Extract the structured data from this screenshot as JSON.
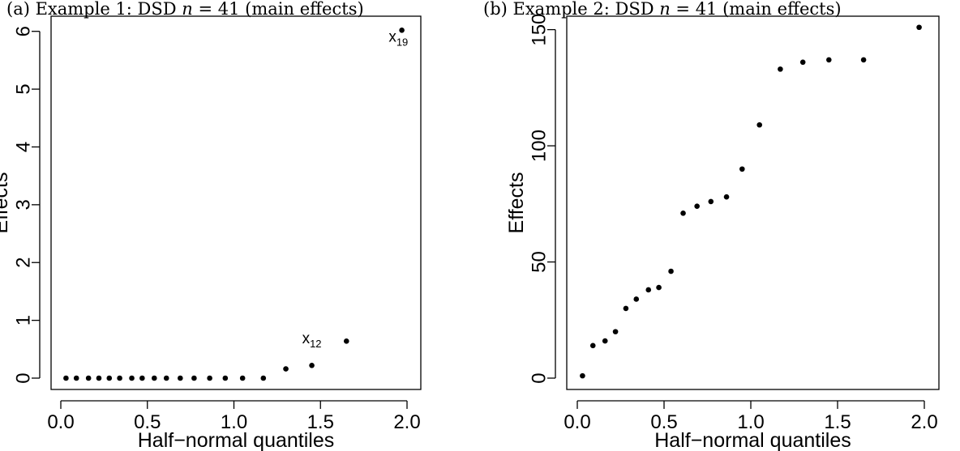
{
  "chart_data": [
    {
      "type": "scatter",
      "title": "(a) Example 1: DSD n = 41 (main effects)",
      "title_parts": {
        "prefix": "(a) Example 1: DSD ",
        "var": "n",
        "mid": " = 41 (main effects)"
      },
      "xlabel": "Half−normal quantiles",
      "ylabel": "Effects",
      "xlim": [
        0,
        2.0
      ],
      "ylim": [
        0,
        6.15
      ],
      "xticks": [
        0.0,
        0.5,
        1.0,
        1.5,
        2.0
      ],
      "xtick_labels": [
        "0.0",
        "0.5",
        "1.0",
        "1.5",
        "2.0"
      ],
      "yticks": [
        0,
        1,
        2,
        3,
        4,
        5,
        6
      ],
      "ytick_labels": [
        "0",
        "1",
        "2",
        "3",
        "4",
        "5",
        "6"
      ],
      "grid": false,
      "x": [
        0.03,
        0.09,
        0.16,
        0.22,
        0.28,
        0.34,
        0.41,
        0.47,
        0.54,
        0.61,
        0.69,
        0.77,
        0.86,
        0.95,
        1.05,
        1.17,
        1.3,
        1.45,
        1.65,
        1.97
      ],
      "y": [
        0,
        0,
        0,
        0,
        0,
        0,
        0,
        0,
        0,
        0,
        0,
        0,
        0,
        0,
        0,
        0,
        0.16,
        0.22,
        0.64,
        6.02
      ],
      "annotations": [
        {
          "main": "x",
          "sub": "12",
          "x": 1.45,
          "y": 0.6
        },
        {
          "main": "x",
          "sub": "19",
          "x": 1.95,
          "y": 5.82
        }
      ]
    },
    {
      "type": "scatter",
      "title": "(b) Example 2: DSD n = 41 (main effects)",
      "title_parts": {
        "prefix": "(b) Example 2: DSD ",
        "var": "n",
        "mid": " = 41 (main effects)"
      },
      "xlabel": "Half−normal quantiles",
      "ylabel": "Effects",
      "xlim": [
        0,
        2.0
      ],
      "ylim": [
        0,
        153
      ],
      "xticks": [
        0.0,
        0.5,
        1.0,
        1.5,
        2.0
      ],
      "xtick_labels": [
        "0.0",
        "0.5",
        "1.0",
        "1.5",
        "2.0"
      ],
      "yticks": [
        0,
        50,
        100,
        150
      ],
      "ytick_labels": [
        "0",
        "50",
        "100",
        "150"
      ],
      "grid": false,
      "x": [
        0.03,
        0.09,
        0.16,
        0.22,
        0.28,
        0.34,
        0.41,
        0.47,
        0.54,
        0.61,
        0.69,
        0.77,
        0.86,
        0.95,
        1.05,
        1.17,
        1.3,
        1.45,
        1.65,
        1.97
      ],
      "y": [
        1,
        14,
        16,
        20,
        30,
        34,
        38,
        39,
        46,
        71,
        74,
        76,
        78,
        90,
        109,
        133,
        136,
        137,
        137,
        151
      ],
      "annotations": []
    }
  ]
}
